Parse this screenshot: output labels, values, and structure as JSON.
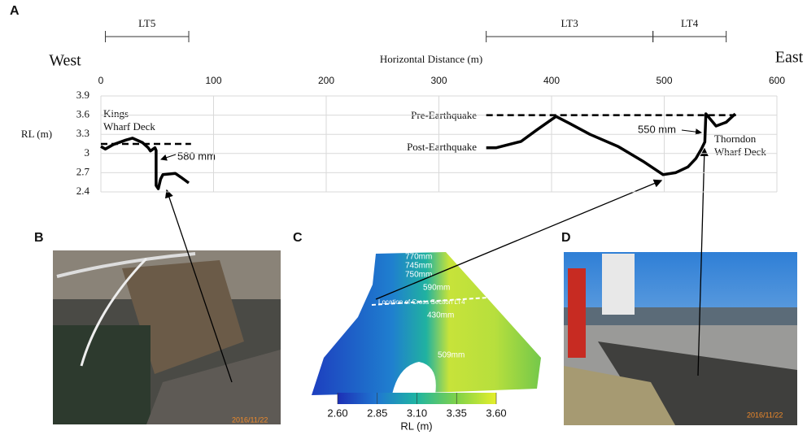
{
  "chart_data": {
    "type": "line",
    "x_label": "Horizontal Distance (m)",
    "y_label": "RL (m)",
    "left_label": "West",
    "right_label": "East",
    "xlim": [
      0,
      600
    ],
    "xticks": [
      0,
      100,
      200,
      300,
      400,
      500,
      600
    ],
    "ylim": [
      2.4,
      3.9
    ],
    "yticks": [
      2.4,
      2.7,
      3,
      3.3,
      3.6,
      3.9
    ],
    "grid": true,
    "series": [
      {
        "name": "Pre-Earthquake",
        "color": "#000000",
        "dashed": true,
        "x": [
          0,
          80,
          null,
          342,
          565
        ],
        "values": [
          3.15,
          3.15,
          null,
          3.6,
          3.6
        ]
      },
      {
        "name": "Post-Earthquake",
        "color": "#000000",
        "dashed": false,
        "x": [
          0,
          4,
          11,
          22,
          28,
          37,
          42,
          44,
          48,
          49,
          49,
          51,
          53,
          55,
          66,
          71,
          78,
          null,
          342,
          351,
          373,
          387,
          404,
          416,
          434,
          459,
          481,
          499,
          510,
          521,
          528,
          533,
          536,
          537,
          546,
          555,
          563
        ],
        "values": [
          3.11,
          3.07,
          3.14,
          3.21,
          3.24,
          3.17,
          3.09,
          3.04,
          3.09,
          3.05,
          2.5,
          2.45,
          2.6,
          2.67,
          2.69,
          2.63,
          2.54,
          null,
          3.09,
          3.09,
          3.19,
          3.37,
          3.58,
          3.47,
          3.3,
          3.11,
          2.88,
          2.67,
          2.7,
          2.79,
          2.92,
          3.07,
          3.18,
          3.62,
          3.43,
          3.49,
          3.62
        ]
      }
    ],
    "segments": [
      {
        "label": "LT5",
        "x": [
          4,
          78
        ]
      },
      {
        "label": "LT3",
        "x": [
          342,
          490
        ]
      },
      {
        "label": "LT4",
        "x": [
          490,
          555
        ]
      }
    ],
    "annotations": {
      "kings_1": "Kings",
      "kings_2": "Wharf Deck",
      "drop_left": "580 mm",
      "drop_right": "550 mm",
      "thorndon_1": "Thorndon",
      "thorndon_2": "Wharf Deck"
    }
  },
  "panels": {
    "a": "A",
    "b": "B",
    "c": "C",
    "d": "D"
  },
  "photo_b": {
    "stamp": "2016/11/22"
  },
  "photo_d": {
    "stamp": "2016/11/22"
  },
  "map_c": {
    "labels": [
      "770mm",
      "745mm",
      "750mm",
      "590mm",
      "Location of Cross Section LT4",
      "430mm",
      "509mm"
    ],
    "colorbar": {
      "label": "RL (m)",
      "lim": [
        2.6,
        3.6
      ],
      "ticks": [
        {
          "value": 2.6,
          "label": "2.60"
        },
        {
          "value": 2.85,
          "label": "2.85"
        },
        {
          "value": 3.1,
          "label": "3.10"
        },
        {
          "value": 3.35,
          "label": "3.35"
        },
        {
          "value": 3.6,
          "label": "3.60"
        }
      ]
    }
  }
}
